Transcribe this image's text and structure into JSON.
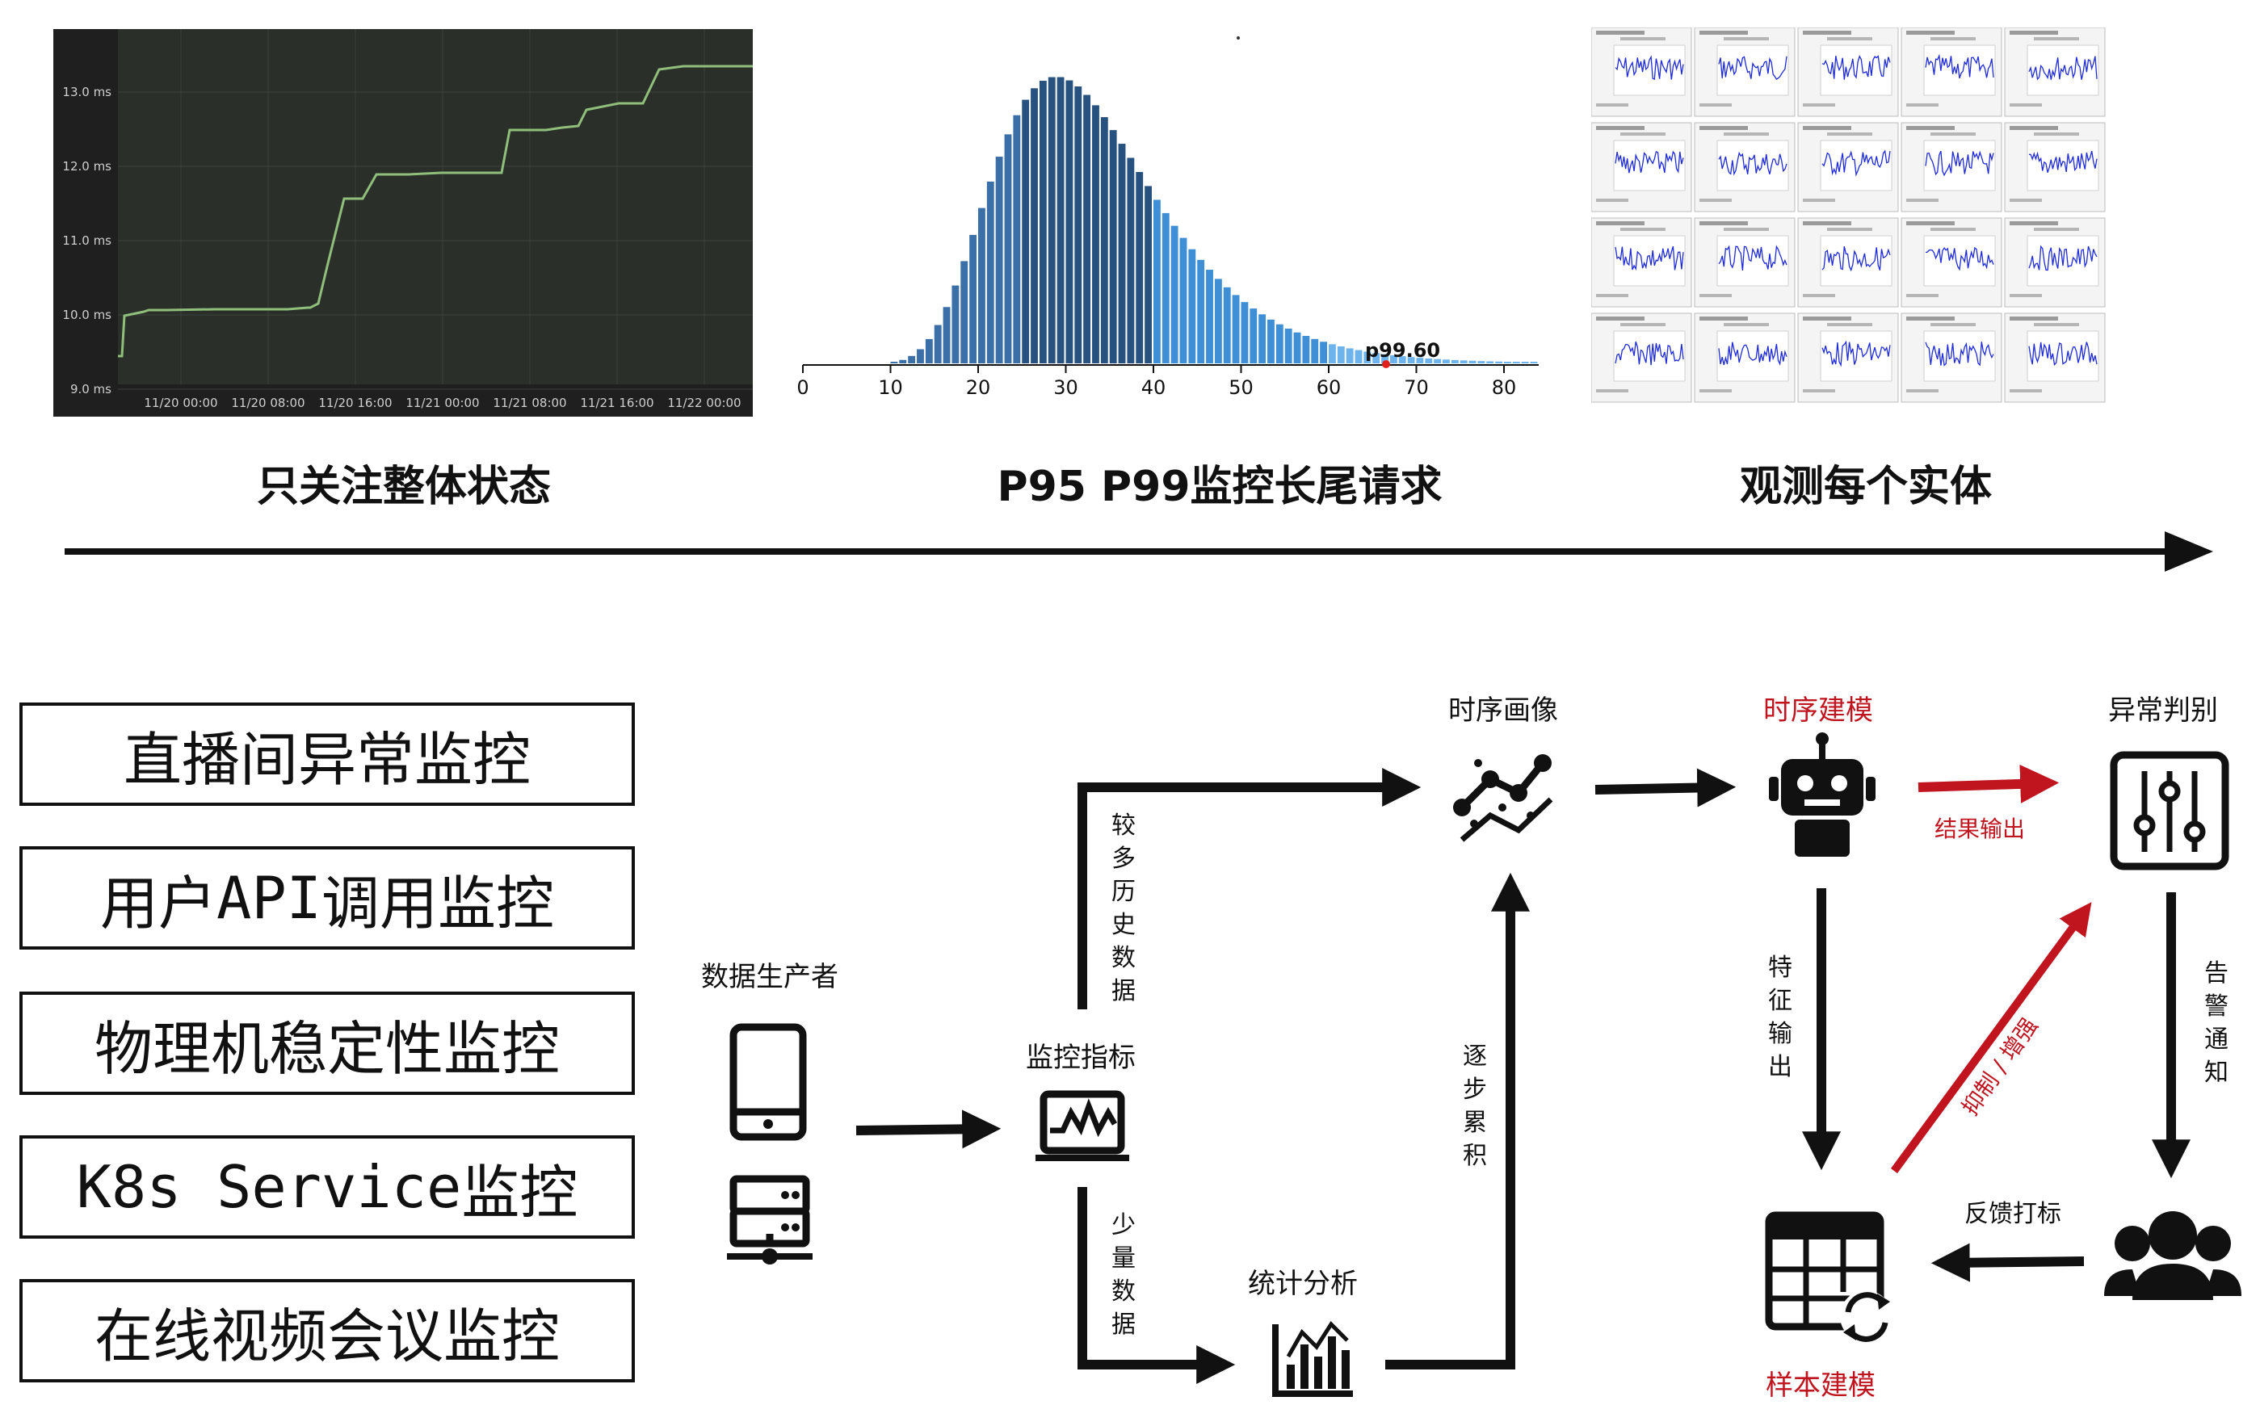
{
  "top": {
    "line_chart": {
      "y_ticks": [
        "13.0 ms",
        "12.0 ms",
        "11.0 ms",
        "10.0 ms",
        "9.0 ms"
      ],
      "x_ticks": [
        "11/20 00:00",
        "11/20 08:00",
        "11/20 16:00",
        "11/21 00:00",
        "11/21 08:00",
        "11/21 16:00",
        "11/22 00:00"
      ],
      "line_color": "#8fbf7a",
      "background": "#1f1f1f"
    },
    "histogram": {
      "x_ticks": [
        "0",
        "10",
        "20",
        "30",
        "40",
        "50",
        "60",
        "70",
        "80"
      ],
      "marker_label": "p99.60",
      "marker_color": "#e0201a"
    },
    "entity_grid": {
      "rows": 4,
      "cols": 5,
      "line_color": "#1f2bd8"
    },
    "captions": [
      "只关注整体状态",
      "P95 P99监控长尾请求",
      "观测每个实体"
    ]
  },
  "left_boxes": [
    {
      "parts": [
        {
          "text": "直播间异常监控",
          "mono": false
        }
      ]
    },
    {
      "parts": [
        {
          "text": "用户",
          "mono": false
        },
        {
          "text": "API",
          "mono": true
        },
        {
          "text": "调用监控",
          "mono": false
        }
      ]
    },
    {
      "parts": [
        {
          "text": "物理机稳定性监控",
          "mono": false
        }
      ]
    },
    {
      "parts": [
        {
          "text": "K8s Service",
          "mono": true
        },
        {
          "text": "监控",
          "mono": false
        }
      ]
    },
    {
      "parts": [
        {
          "text": "在线视频会议监控",
          "mono": false
        }
      ]
    }
  ],
  "flow": {
    "producer": "数据生产者",
    "metrics": "监控指标",
    "more_history": "较多历史数据",
    "less_data": "少量数据",
    "stats": "统计分析",
    "accumulate": "逐步累积",
    "ts_profile": "时序画像",
    "ts_model": "时序建模",
    "result_output": "结果输出",
    "anomaly_judge": "异常判别",
    "feature_output": "特征输出",
    "alert_notify": "告警通知",
    "feedback": "反馈打标",
    "suppress": "抑制 / 增强",
    "sample_model": "样本建模",
    "accent": "#c0141f"
  }
}
